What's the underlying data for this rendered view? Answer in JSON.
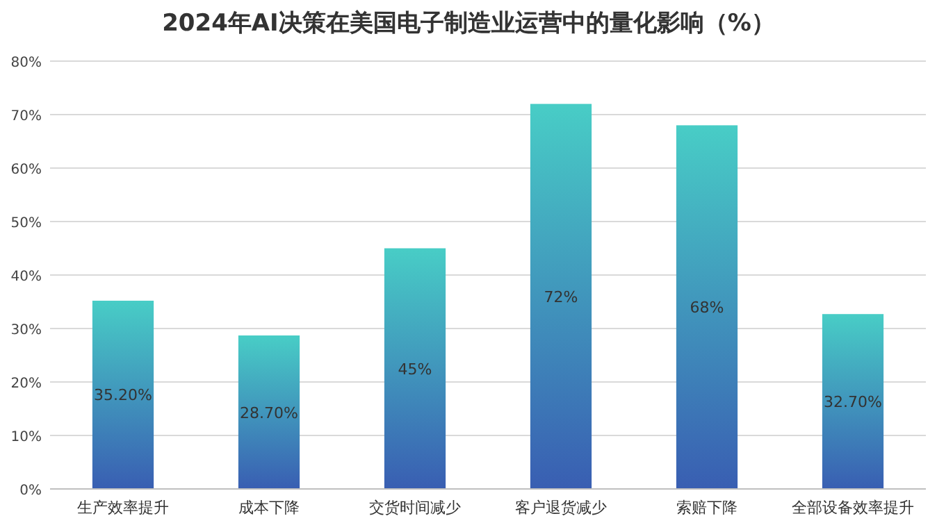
{
  "chart_data": {
    "type": "bar",
    "title": "2024年AI决策在美国电子制造业运营中的量化影响（%）",
    "categories": [
      "生产效率提升",
      "成本下降",
      "交货时间减少",
      "客户退货减少",
      "索赔下降",
      "全部设备效率提升"
    ],
    "values": [
      35.2,
      28.7,
      45,
      72,
      68,
      32.7
    ],
    "value_labels": [
      "35.20%",
      "28.70%",
      "45%",
      "72%",
      "68%",
      "32.70%"
    ],
    "color": "#48cdc6",
    "ylim": [
      0,
      80
    ],
    "yticks": [
      {
        "value": 0,
        "label": "0%"
      },
      {
        "value": 10,
        "label": "10%"
      },
      {
        "value": 20,
        "label": "20%"
      },
      {
        "value": 30,
        "label": "30%"
      },
      {
        "value": 40,
        "label": "40%"
      },
      {
        "value": 50,
        "label": "50%"
      },
      {
        "value": 60,
        "label": "60%"
      },
      {
        "value": 70,
        "label": "70%"
      },
      {
        "value": 80,
        "label": "80%"
      }
    ],
    "grid": "y"
  }
}
